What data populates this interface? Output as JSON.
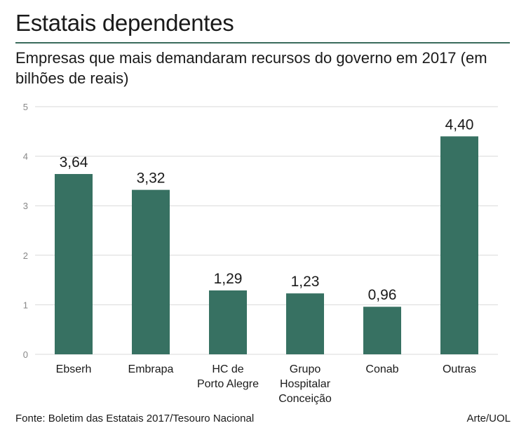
{
  "title": "Estatais dependentes",
  "subtitle": "Empresas que mais demandaram recursos do governo em 2017 (em bilhões de reais)",
  "source": "Fonte: Boletim das Estatais 2017/Tesouro Nacional",
  "credit": "Arte/UOL",
  "colors": {
    "bar": "#377162",
    "grid": "#d9d9d9",
    "axis_text": "#888888",
    "rule": "#3a6b5c"
  },
  "chart_data": {
    "type": "bar",
    "title": "Estatais dependentes",
    "subtitle": "Empresas que mais demandaram recursos do governo em 2017 (em bilhões de reais)",
    "categories": [
      [
        "Ebserh"
      ],
      [
        "Embrapa"
      ],
      [
        "HC de",
        "Porto Alegre"
      ],
      [
        "Grupo",
        "Hospitalar",
        "Conceição"
      ],
      [
        "Conab"
      ],
      [
        "Outras"
      ]
    ],
    "values": [
      3.64,
      3.32,
      1.29,
      1.23,
      0.96,
      4.4
    ],
    "value_labels": [
      "3,64",
      "3,32",
      "1,29",
      "1,23",
      "0,96",
      "4,40"
    ],
    "ylim": [
      0,
      5
    ],
    "yticks": [
      "0",
      "1",
      "2",
      "3",
      "4",
      "5"
    ],
    "grid": true,
    "xlabel": "",
    "ylabel": ""
  }
}
